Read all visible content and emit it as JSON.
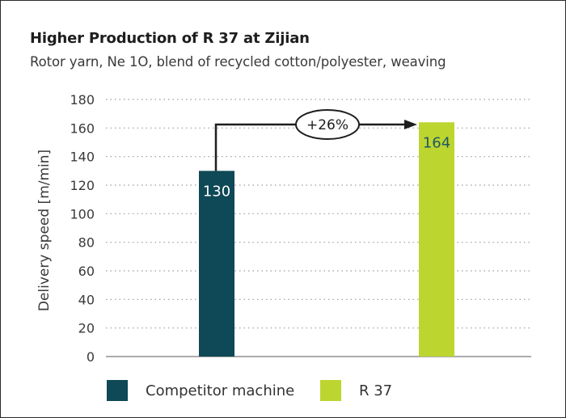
{
  "title": "Higher Production of R 37 at Zijian",
  "subtitle": "Rotor yarn, Ne 1O, blend of recycled cotton/polyester, weaving",
  "chart_data": {
    "type": "bar",
    "ylabel": "Delivery speed [m/min]",
    "ylim": [
      0,
      180
    ],
    "yticks": [
      0,
      20,
      40,
      60,
      80,
      100,
      120,
      140,
      160,
      180
    ],
    "grid": true,
    "legend_placement": "bottom",
    "series": [
      {
        "name": "Competitor machine",
        "value": 130,
        "label": "130",
        "color": "#0f4856",
        "label_color": "#ffffff"
      },
      {
        "name": "R 37",
        "value": 164,
        "label": "164",
        "color": "#bdd52f",
        "label_color": "#1f5a60"
      }
    ],
    "annotation": {
      "text": "+26%"
    }
  }
}
